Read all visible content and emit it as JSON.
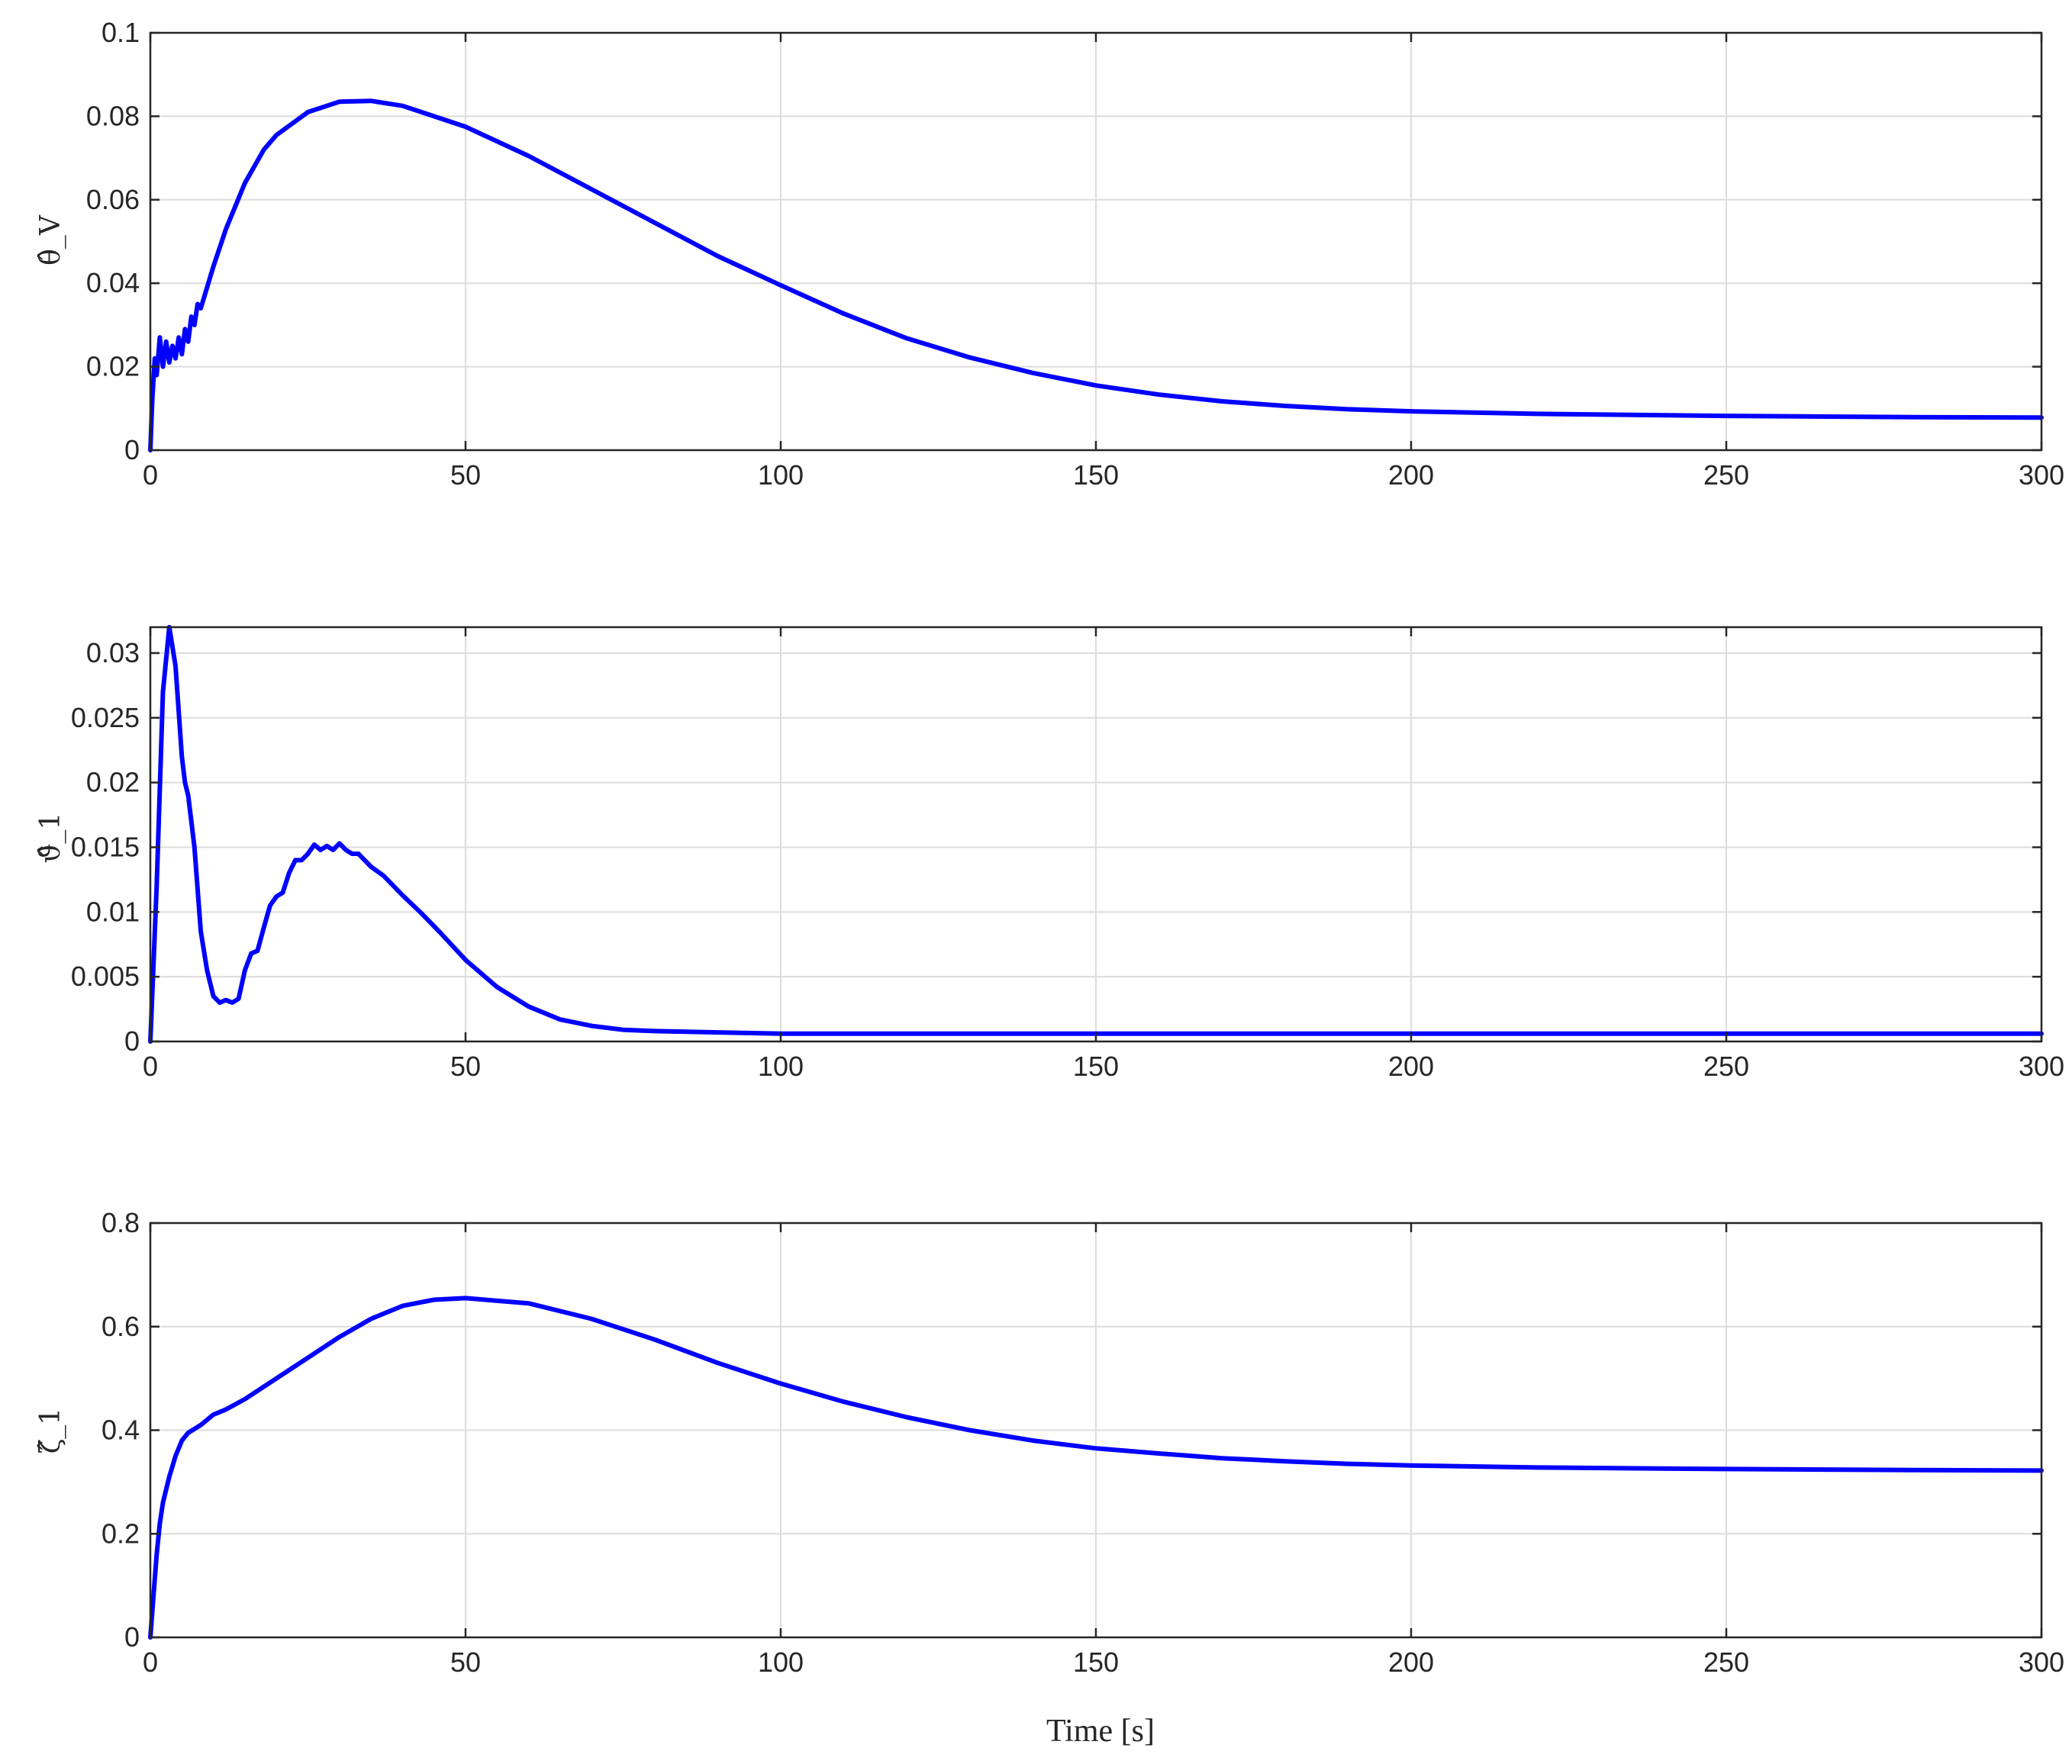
{
  "colors": {
    "series": "#0000ff",
    "grid": "#dcdcdc",
    "axes": "#262626"
  },
  "chart_data": [
    {
      "type": "line",
      "ylabel": "θ̂_V",
      "xlim": [
        0,
        300
      ],
      "ylim": [
        0,
        0.1
      ],
      "xticks": [
        0,
        50,
        100,
        150,
        200,
        250,
        300
      ],
      "xtick_labels": [
        "0",
        "50",
        "100",
        "150",
        "200",
        "250",
        "300"
      ],
      "yticks": [
        0,
        0.02,
        0.04,
        0.06,
        0.08,
        0.1
      ],
      "ytick_labels": [
        "0",
        "0.02",
        "0.04",
        "0.06",
        "0.08",
        "0.1"
      ],
      "grid": true,
      "series": [
        {
          "x": [
            0,
            0.3,
            0.7,
            1,
            1.5,
            2,
            2.5,
            3,
            3.5,
            4,
            4.5,
            5,
            5.5,
            6,
            6.5,
            7,
            7.5,
            8,
            10,
            12,
            15,
            18,
            20,
            25,
            30,
            35,
            40,
            45,
            50,
            60,
            70,
            80,
            90,
            100,
            110,
            120,
            130,
            140,
            150,
            160,
            170,
            180,
            190,
            200,
            220,
            250,
            280,
            300
          ],
          "y": [
            0,
            0.012,
            0.022,
            0.018,
            0.027,
            0.02,
            0.026,
            0.021,
            0.025,
            0.022,
            0.027,
            0.023,
            0.029,
            0.026,
            0.032,
            0.03,
            0.035,
            0.034,
            0.044,
            0.053,
            0.064,
            0.072,
            0.0755,
            0.081,
            0.0835,
            0.0837,
            0.0825,
            0.08,
            0.0775,
            0.0705,
            0.0625,
            0.0545,
            0.0465,
            0.0395,
            0.0327,
            0.0268,
            0.0222,
            0.0185,
            0.0155,
            0.0133,
            0.0117,
            0.0106,
            0.0098,
            0.0093,
            0.0087,
            0.0082,
            0.0079,
            0.0078
          ]
        }
      ]
    },
    {
      "type": "line",
      "ylabel": "ϑ̂_1",
      "xlim": [
        0,
        300
      ],
      "ylim": [
        0,
        0.032
      ],
      "xticks": [
        0,
        50,
        100,
        150,
        200,
        250,
        300
      ],
      "xtick_labels": [
        "0",
        "50",
        "100",
        "150",
        "200",
        "250",
        "300"
      ],
      "yticks": [
        0,
        0.005,
        0.01,
        0.015,
        0.02,
        0.025,
        0.03
      ],
      "ytick_labels": [
        "0",
        "0.005",
        "0.01",
        "0.015",
        "0.02",
        "0.025",
        "0.03"
      ],
      "grid": true,
      "series": [
        {
          "x": [
            0,
            1,
            2,
            3,
            4,
            5,
            5.5,
            6,
            7,
            8,
            9,
            10,
            11,
            12,
            13,
            14,
            15,
            16,
            17,
            18,
            19,
            20,
            21,
            22,
            23,
            24,
            25,
            26,
            27,
            28,
            29,
            30,
            31,
            32,
            33,
            35,
            37,
            40,
            43,
            46,
            50,
            55,
            60,
            65,
            70,
            75,
            80,
            90,
            100,
            150,
            200,
            250,
            300
          ],
          "y": [
            0,
            0.012,
            0.027,
            0.032,
            0.029,
            0.022,
            0.02,
            0.019,
            0.015,
            0.0085,
            0.0055,
            0.0035,
            0.003,
            0.0032,
            0.003,
            0.0033,
            0.0055,
            0.0068,
            0.007,
            0.0088,
            0.0105,
            0.0112,
            0.0115,
            0.013,
            0.014,
            0.014,
            0.0145,
            0.0152,
            0.0148,
            0.0151,
            0.0148,
            0.0153,
            0.0148,
            0.0145,
            0.0145,
            0.0135,
            0.0128,
            0.0113,
            0.0099,
            0.0084,
            0.0063,
            0.0042,
            0.0027,
            0.0017,
            0.0012,
            0.0009,
            0.0008,
            0.0007,
            0.0006,
            0.0006,
            0.0006,
            0.0006,
            0.0006
          ]
        }
      ]
    },
    {
      "type": "line",
      "ylabel": "ζ̂_1",
      "xlabel": "Time [s]",
      "xlim": [
        0,
        300
      ],
      "ylim": [
        0,
        0.8
      ],
      "xticks": [
        0,
        50,
        100,
        150,
        200,
        250,
        300
      ],
      "xtick_labels": [
        "0",
        "50",
        "100",
        "150",
        "200",
        "250",
        "300"
      ],
      "yticks": [
        0,
        0.2,
        0.4,
        0.6,
        0.8
      ],
      "ytick_labels": [
        "0",
        "0.2",
        "0.4",
        "0.6",
        "0.8"
      ],
      "grid": true,
      "series": [
        {
          "x": [
            0,
            0.5,
            1,
            1.5,
            2,
            3,
            4,
            5,
            6,
            8,
            10,
            12,
            15,
            20,
            25,
            30,
            35,
            40,
            45,
            50,
            60,
            70,
            80,
            90,
            100,
            110,
            120,
            130,
            140,
            150,
            160,
            170,
            180,
            190,
            200,
            220,
            250,
            280,
            300
          ],
          "y": [
            0,
            0.08,
            0.16,
            0.22,
            0.26,
            0.31,
            0.35,
            0.38,
            0.395,
            0.41,
            0.43,
            0.44,
            0.46,
            0.5,
            0.54,
            0.58,
            0.615,
            0.64,
            0.652,
            0.655,
            0.645,
            0.615,
            0.575,
            0.53,
            0.49,
            0.455,
            0.425,
            0.4,
            0.38,
            0.365,
            0.355,
            0.346,
            0.34,
            0.335,
            0.332,
            0.328,
            0.325,
            0.323,
            0.322
          ]
        }
      ]
    }
  ]
}
